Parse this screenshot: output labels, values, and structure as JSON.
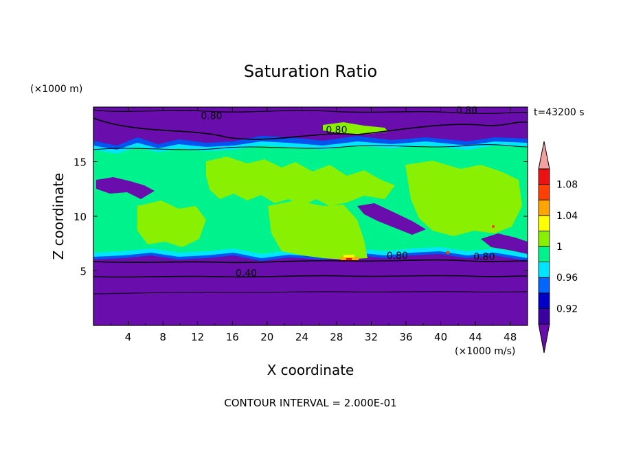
{
  "chart_data": {
    "type": "heatmap",
    "title": "Saturation Ratio",
    "xlabel": "X coordinate",
    "ylabel": "Z coordinate",
    "x_units": "(×1000 m/s)",
    "y_units": "(×1000 m)",
    "time_label": "t=43200 s",
    "footer": "CONTOUR INTERVAL = 2.000E-01",
    "xlim": [
      0,
      50
    ],
    "ylim": [
      0,
      20
    ],
    "x_ticks": [
      4,
      8,
      12,
      16,
      20,
      24,
      28,
      32,
      36,
      40,
      44,
      48
    ],
    "y_ticks": [
      5,
      10,
      15
    ],
    "colorbar": {
      "labels": [
        "1.08",
        "1.04",
        "1",
        "0.96",
        "0.92"
      ],
      "label_values": [
        1.08,
        1.04,
        1.0,
        0.96,
        0.92
      ],
      "levels": [
        0.9,
        0.92,
        0.94,
        0.96,
        0.98,
        1.0,
        1.02,
        1.04,
        1.06,
        1.08,
        1.1
      ],
      "colors": [
        "#6a0dad",
        "#3a00a0",
        "#0000c8",
        "#0066ff",
        "#00e5ff",
        "#00f28c",
        "#88f000",
        "#ffff00",
        "#ffa500",
        "#ff4000",
        "#ee1111",
        "#f5a0a0"
      ]
    },
    "contour_labels": [
      {
        "text": "0.80",
        "x": 28.0,
        "z": 17.6
      },
      {
        "text": "0.80",
        "x": 13.6,
        "z": 18.9
      },
      {
        "text": "0.80",
        "x": 35.0,
        "z": 6.1
      },
      {
        "text": "0.80",
        "x": 45.0,
        "z": 6.0
      },
      {
        "text": "0.40",
        "x": 17.6,
        "z": 4.5
      },
      {
        "text": "0.80",
        "x": 43.0,
        "z": 19.4
      }
    ]
  }
}
